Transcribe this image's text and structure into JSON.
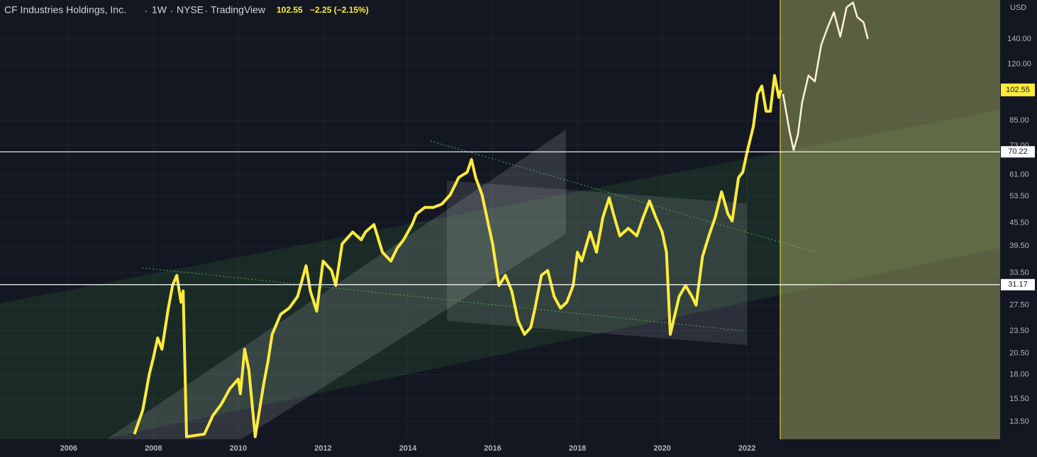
{
  "chart_data": {
    "type": "line",
    "title": "CF Industries Holdings, Inc.",
    "interval": "1W",
    "exchange": "NYSE",
    "source": "TradingView",
    "last_price": 102.55,
    "change_text": "−2.25 (−2.15%)",
    "currency": "USD",
    "log_scale": true,
    "grid": true,
    "xlim": [
      2004.38,
      2027.97
    ],
    "xticks": [
      2006,
      2008,
      2010,
      2012,
      2014,
      2016,
      2018,
      2020,
      2022
    ],
    "ylim": [
      12.11,
      177.7
    ],
    "yticks": [
      {
        "value": 140,
        "label": "140.00"
      },
      {
        "value": 120,
        "label": "120.00"
      },
      {
        "value": 85,
        "label": "85.00"
      },
      {
        "value": 73,
        "label": "73.00"
      },
      {
        "value": 61,
        "label": "61.00"
      },
      {
        "value": 53.5,
        "label": "53.50"
      },
      {
        "value": 45.5,
        "label": "45.50"
      },
      {
        "value": 39.5,
        "label": "39.50"
      },
      {
        "value": 33.5,
        "label": "33.50"
      },
      {
        "value": 27.5,
        "label": "27.50"
      },
      {
        "value": 23.5,
        "label": "23.50"
      },
      {
        "value": 20.5,
        "label": "20.50"
      },
      {
        "value": 18,
        "label": "18.00"
      },
      {
        "value": 15.5,
        "label": "15.50"
      },
      {
        "value": 13.5,
        "label": "13.50"
      }
    ],
    "hlines": [
      70.22,
      31.17
    ],
    "series": [
      {
        "color": "#ffeb3b",
        "x": [
          2007.55,
          2007.75,
          2007.9,
          2008.0,
          2008.1,
          2008.2,
          2008.35,
          2008.45,
          2008.55,
          2008.65,
          2008.7,
          2008.78,
          2009.2,
          2009.4,
          2009.6,
          2009.8,
          2010.0,
          2010.05,
          2010.15,
          2010.25,
          2010.4,
          2010.6,
          2010.7,
          2010.8,
          2011.0,
          2011.2,
          2011.4,
          2011.6,
          2011.7,
          2011.85,
          2012.0,
          2012.2,
          2012.3,
          2012.45,
          2012.7,
          2012.9,
          2013.0,
          2013.2,
          2013.4,
          2013.6,
          2013.75,
          2013.9,
          2014.1,
          2014.2,
          2014.4,
          2014.6,
          2014.8,
          2015.0,
          2015.2,
          2015.4,
          2015.5,
          2015.6,
          2015.75,
          2015.9,
          2016.0,
          2016.15,
          2016.3,
          2016.45,
          2016.6,
          2016.75,
          2016.9,
          2017.0,
          2017.15,
          2017.3,
          2017.45,
          2017.6,
          2017.75,
          2017.9,
          2018.0,
          2018.1,
          2018.3,
          2018.45,
          2018.6,
          2018.75,
          2018.85,
          2019.0,
          2019.2,
          2019.4,
          2019.55,
          2019.7,
          2019.85,
          2020.0,
          2020.1,
          2020.19,
          2020.3,
          2020.4,
          2020.55,
          2020.7,
          2020.8,
          2020.95,
          2021.1,
          2021.25,
          2021.4,
          2021.55,
          2021.65,
          2021.8,
          2021.9,
          2022.0,
          2022.15,
          2022.25,
          2022.35,
          2022.45,
          2022.55,
          2022.65,
          2022.75,
          2022.8
        ],
        "values": [
          12.5,
          14.5,
          18,
          20,
          22.5,
          21,
          27,
          31,
          33,
          28,
          30,
          12.3,
          12.5,
          14,
          15,
          16.5,
          17.5,
          16,
          21,
          18.5,
          12.3,
          17,
          19.5,
          23,
          26,
          27,
          29,
          35,
          30,
          26.5,
          36,
          34,
          31,
          40,
          43,
          41,
          43,
          45,
          38,
          36,
          39,
          41,
          45,
          48,
          50,
          50,
          51,
          54,
          60,
          62,
          67,
          60,
          54,
          45,
          40,
          31,
          33,
          30,
          25,
          23,
          24,
          27,
          33,
          34,
          29,
          27,
          28,
          31,
          38,
          36,
          43,
          38,
          47,
          53,
          48,
          42,
          44,
          42,
          47,
          52,
          47,
          43,
          38,
          23,
          26,
          29,
          31,
          29,
          27.5,
          37,
          42,
          47,
          55,
          48,
          46,
          60,
          62,
          70,
          82,
          100,
          105,
          90,
          90,
          112,
          98,
          102.55
        ]
      },
      {
        "color": "#fff3d6",
        "x": [
          2022.85,
          2023.0,
          2023.1,
          2023.2,
          2023.3,
          2023.45,
          2023.6,
          2023.75,
          2023.9,
          2024.05,
          2024.2,
          2024.35,
          2024.5,
          2024.6,
          2024.75,
          2024.85
        ],
        "values": [
          100,
          80,
          71,
          78,
          95,
          112,
          108,
          135,
          150,
          165,
          142,
          170,
          175,
          160,
          155,
          140
        ]
      }
    ]
  }
}
